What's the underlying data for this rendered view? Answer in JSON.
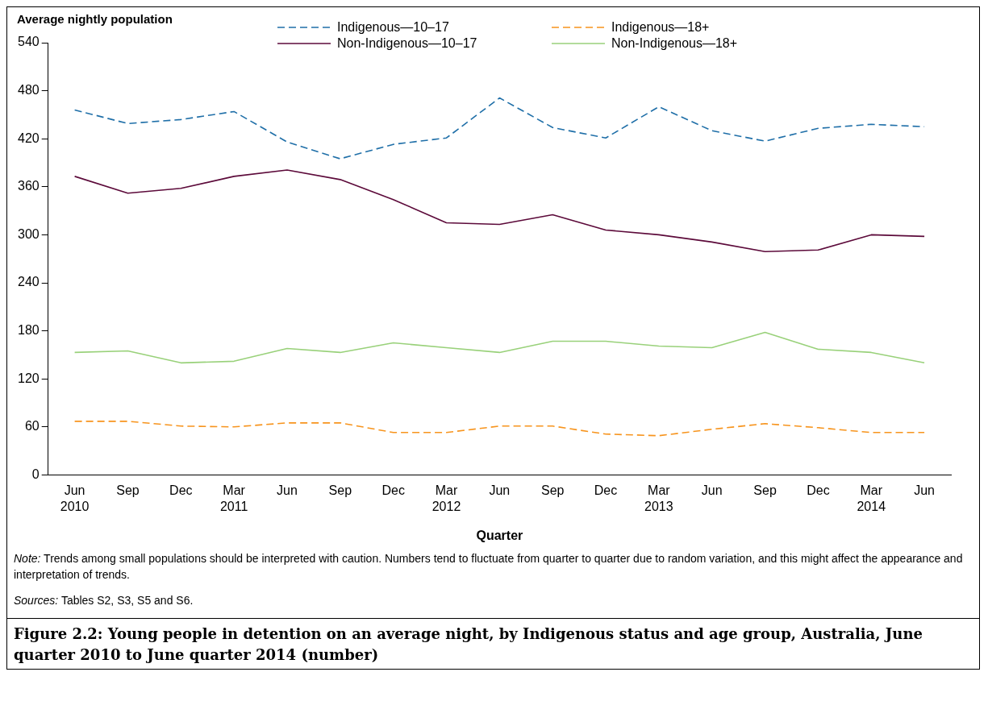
{
  "chart_data": {
    "type": "line",
    "ylabel": "Average nightly population",
    "xlabel": "Quarter",
    "title": "Figure 2.2: Young people in detention on an average night, by Indigenous status and age group, Australia, June quarter 2010 to June quarter 2014 (number)",
    "annotations": [
      "Note: Trends among small populations should be interpreted with caution. Numbers tend to fluctuate from quarter to quarter due to random variation, and this might affect the appearance and interpretation of trends.",
      "Sources: Tables S2, S3, S5 and S6."
    ],
    "categories": [
      "Jun 2010",
      "Sep",
      "Dec",
      "Mar 2011",
      "Jun",
      "Sep",
      "Dec",
      "Mar 2012",
      "Jun",
      "Sep",
      "Dec",
      "Mar 2013",
      "Jun",
      "Sep",
      "Dec",
      "Mar 2014",
      "Jun"
    ],
    "ylim": [
      0,
      540
    ],
    "yticks": [
      0,
      60,
      120,
      180,
      240,
      300,
      360,
      420,
      480,
      540
    ],
    "grid": false,
    "legend": "top",
    "marker": "none",
    "series": [
      {
        "name": "Indigenous—10–17",
        "color": "#1f6fa8",
        "line_style": "dashed",
        "values": [
          456,
          439,
          444,
          454,
          416,
          395,
          413,
          421,
          471,
          434,
          421,
          460,
          430,
          417,
          433,
          438,
          435
        ]
      },
      {
        "name": "Indigenous—18+",
        "color": "#f7941d",
        "line_style": "dashed",
        "values": [
          67,
          67,
          61,
          60,
          65,
          65,
          53,
          53,
          61,
          61,
          51,
          49,
          57,
          64,
          59,
          53,
          53
        ]
      },
      {
        "name": "Non-Indigenous—10–17",
        "color": "#5c0a3a",
        "line_style": "solid",
        "values": [
          373,
          352,
          358,
          373,
          381,
          369,
          344,
          315,
          313,
          325,
          306,
          300,
          291,
          279,
          281,
          300,
          298
        ]
      },
      {
        "name": "Non-Indigenous—18+",
        "color": "#99d17a",
        "line_style": "solid",
        "values": [
          153,
          155,
          140,
          142,
          158,
          153,
          165,
          159,
          153,
          167,
          167,
          161,
          159,
          178,
          157,
          153,
          140
        ]
      }
    ]
  }
}
